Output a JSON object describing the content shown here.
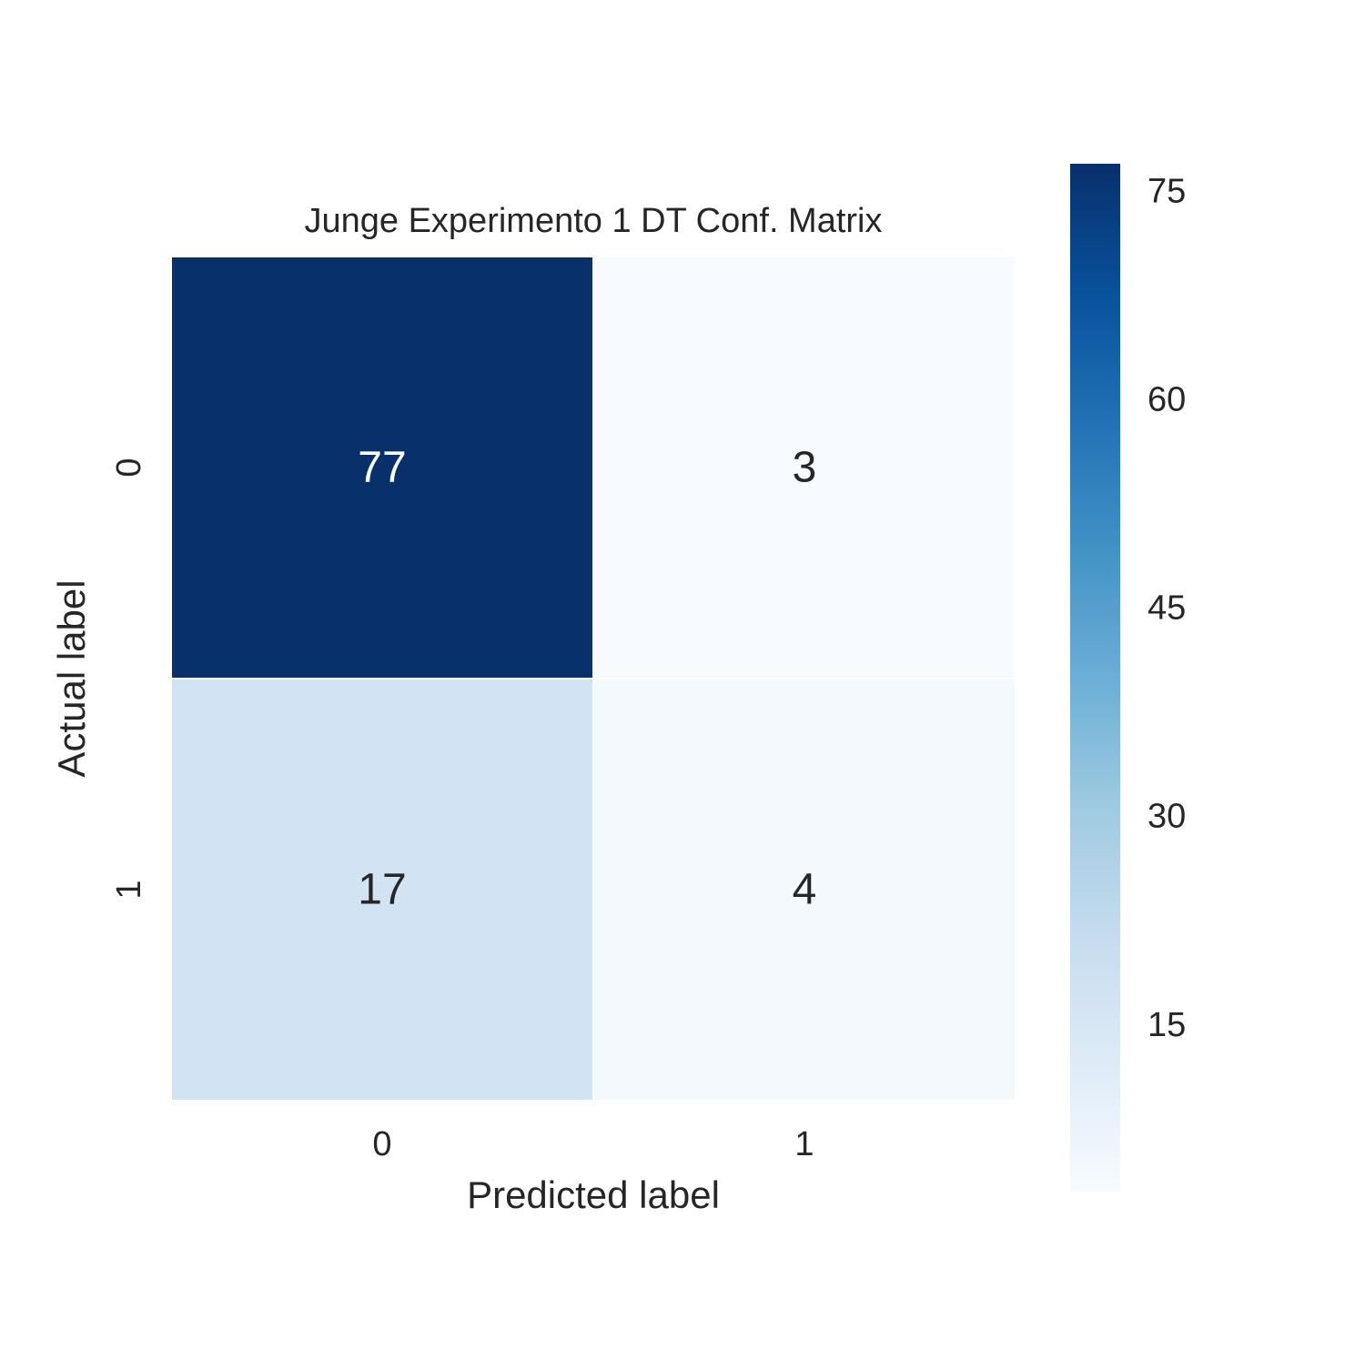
{
  "chart_data": {
    "type": "heatmap",
    "title": "Junge Experimento 1 DT Conf. Matrix",
    "xlabel": "Predicted label",
    "ylabel": "Actual label",
    "x_categories": [
      "0",
      "1"
    ],
    "y_categories": [
      "0",
      "1"
    ],
    "values": [
      [
        77,
        3
      ],
      [
        17,
        4
      ]
    ],
    "colormap": "Blues",
    "color_range": [
      3,
      77
    ],
    "colorbar": {
      "ticks": [
        15,
        30,
        45,
        60,
        75
      ],
      "tick_labels": [
        "15",
        "30",
        "45",
        "60",
        "75"
      ],
      "placement": "right"
    },
    "grid": false
  }
}
